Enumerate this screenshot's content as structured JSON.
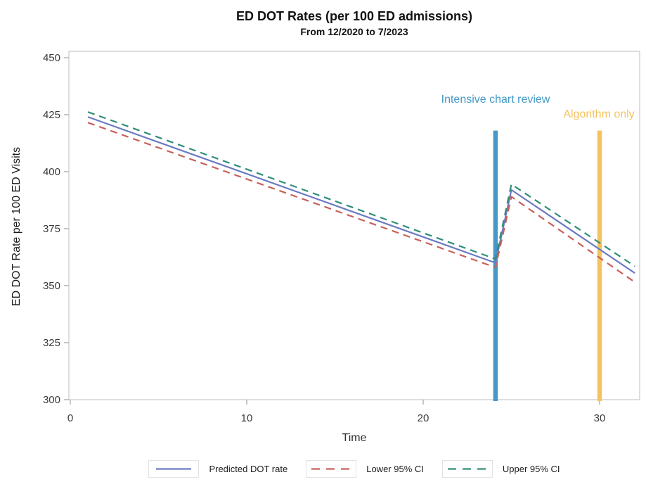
{
  "chart_data": {
    "type": "line",
    "title": "ED DOT Rates (per 100 ED admissions)",
    "subtitle": "From 12/2020 to 7/2023",
    "xlabel": "Time",
    "ylabel": "ED DOT Rate per 100 ED Visits",
    "xlim": [
      -0.1,
      32.3
    ],
    "ylim": [
      300,
      450
    ],
    "x_ticks": [
      0,
      10,
      20,
      30
    ],
    "y_ticks": [
      300,
      325,
      350,
      375,
      400,
      425,
      450
    ],
    "grid": false,
    "legend_position": "bottom",
    "axis_color": "#c8c8c8",
    "tick_color": "#a8a8a8",
    "tick_label_color": "#3a3a3a",
    "series": [
      {
        "name": "Predicted DOT rate",
        "color": "#6b7ac1",
        "style": "solid",
        "points": [
          [
            1,
            424
          ],
          [
            24.1,
            360
          ],
          [
            25,
            392
          ],
          [
            32,
            355.5
          ]
        ]
      },
      {
        "name": "Lower 95% CI",
        "color": "#c9605a",
        "style": "dashed",
        "points": [
          [
            1,
            421.5
          ],
          [
            24.1,
            358
          ],
          [
            25,
            389
          ],
          [
            32,
            351.5
          ]
        ]
      },
      {
        "name": "Upper 95% CI",
        "color": "#2f8e79",
        "style": "dashed",
        "points": [
          [
            1,
            426.2
          ],
          [
            24.1,
            361.7
          ],
          [
            25,
            394.5
          ],
          [
            32,
            358.5
          ]
        ]
      }
    ],
    "vlines": [
      {
        "x": 24.1,
        "y_top": 418,
        "color": "#4499c7",
        "label": "Intensive chart review"
      },
      {
        "x": 30,
        "y_top": 418,
        "color": "#f5c35e",
        "label": "Algorithm only"
      }
    ]
  }
}
